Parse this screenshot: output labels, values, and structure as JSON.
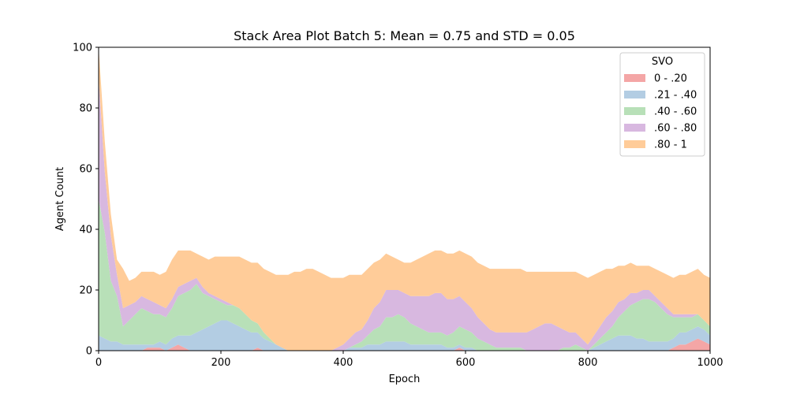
{
  "chart_data": {
    "type": "area",
    "stacked": true,
    "title": "Stack Area Plot Batch 5: Mean = 0.75 and STD = 0.05",
    "xlabel": "Epoch",
    "ylabel": "Agent Count",
    "xlim": [
      0,
      1000
    ],
    "ylim": [
      0,
      100
    ],
    "xticks": [
      0,
      200,
      400,
      600,
      800,
      1000
    ],
    "yticks": [
      0,
      20,
      40,
      60,
      80,
      100
    ],
    "grid": false,
    "legend": {
      "title": "SVO",
      "placement": "top-right"
    },
    "x": [
      0,
      10,
      20,
      30,
      40,
      50,
      60,
      70,
      80,
      90,
      100,
      110,
      120,
      130,
      140,
      150,
      160,
      170,
      180,
      190,
      200,
      210,
      220,
      230,
      240,
      250,
      260,
      270,
      280,
      290,
      300,
      310,
      320,
      330,
      340,
      350,
      360,
      370,
      380,
      390,
      400,
      410,
      420,
      430,
      440,
      450,
      460,
      470,
      480,
      490,
      500,
      510,
      520,
      530,
      540,
      550,
      560,
      570,
      580,
      590,
      600,
      610,
      620,
      630,
      640,
      650,
      660,
      670,
      680,
      690,
      700,
      710,
      720,
      730,
      740,
      750,
      760,
      770,
      780,
      790,
      800,
      810,
      820,
      830,
      840,
      850,
      860,
      870,
      880,
      890,
      900,
      910,
      920,
      930,
      940,
      950,
      960,
      970,
      980,
      990,
      1000
    ],
    "series": [
      {
        "name": "0 - .20",
        "color": "#f4a6a6",
        "values": [
          0,
          0,
          0,
          0,
          0,
          0,
          0,
          0,
          1,
          1,
          1,
          0,
          1,
          2,
          1,
          0,
          0,
          0,
          0,
          0,
          0,
          0,
          0,
          0,
          0,
          0,
          1,
          0,
          0,
          0,
          0,
          0,
          0,
          0,
          0,
          0,
          0,
          0,
          0,
          0,
          0,
          0,
          0,
          0,
          0,
          0,
          0,
          0,
          0,
          0,
          0,
          0,
          0,
          0,
          0,
          0,
          0,
          0,
          0,
          1,
          0,
          0,
          0,
          0,
          0,
          0,
          0,
          0,
          0,
          0,
          0,
          0,
          0,
          0,
          0,
          0,
          0,
          0,
          0,
          0,
          0,
          0,
          0,
          0,
          0,
          0,
          0,
          0,
          0,
          0,
          0,
          0,
          0,
          0,
          1,
          2,
          2,
          3,
          4,
          3,
          2
        ]
      },
      {
        "name": ".21 - .40",
        "color": "#b3cde3",
        "values": [
          5,
          4,
          3,
          3,
          2,
          2,
          2,
          2,
          1,
          1,
          2,
          2,
          3,
          3,
          4,
          5,
          6,
          7,
          8,
          9,
          10,
          10,
          9,
          8,
          7,
          6,
          5,
          4,
          3,
          2,
          1,
          0,
          0,
          0,
          0,
          0,
          0,
          0,
          0,
          0,
          0,
          1,
          1,
          1,
          2,
          2,
          2,
          3,
          3,
          3,
          3,
          2,
          2,
          2,
          2,
          2,
          2,
          1,
          1,
          1,
          1,
          1,
          0,
          0,
          0,
          0,
          0,
          0,
          0,
          0,
          0,
          0,
          0,
          0,
          0,
          0,
          0,
          0,
          0,
          0,
          0,
          1,
          2,
          3,
          4,
          5,
          5,
          5,
          4,
          4,
          3,
          3,
          3,
          3,
          3,
          4,
          4,
          4,
          4,
          4,
          3
        ]
      },
      {
        "name": ".40 - .60",
        "color": "#b8e0b8",
        "values": [
          45,
          35,
          20,
          15,
          6,
          8,
          10,
          12,
          11,
          10,
          9,
          9,
          10,
          13,
          14,
          15,
          16,
          12,
          10,
          8,
          6,
          5,
          6,
          6,
          5,
          4,
          3,
          2,
          1,
          0,
          0,
          0,
          0,
          0,
          0,
          0,
          0,
          0,
          0,
          0,
          0,
          0,
          1,
          2,
          3,
          5,
          6,
          8,
          8,
          9,
          8,
          7,
          6,
          5,
          4,
          4,
          4,
          4,
          5,
          6,
          6,
          5,
          4,
          3,
          2,
          1,
          1,
          1,
          1,
          1,
          0,
          0,
          0,
          0,
          0,
          0,
          1,
          1,
          2,
          1,
          0,
          1,
          2,
          3,
          4,
          6,
          8,
          10,
          12,
          13,
          14,
          13,
          11,
          9,
          7,
          5,
          5,
          4,
          4,
          3,
          3
        ]
      },
      {
        "name": ".60 - .80",
        "color": "#d8b8e0",
        "values": [
          40,
          20,
          15,
          7,
          6,
          5,
          4,
          4,
          4,
          4,
          3,
          3,
          3,
          3,
          3,
          3,
          2,
          2,
          1,
          1,
          1,
          1,
          0,
          0,
          0,
          0,
          0,
          0,
          0,
          0,
          0,
          0,
          0,
          0,
          0,
          0,
          0,
          0,
          0,
          1,
          2,
          3,
          4,
          4,
          5,
          7,
          8,
          9,
          9,
          8,
          8,
          9,
          10,
          11,
          12,
          13,
          13,
          12,
          11,
          10,
          9,
          8,
          7,
          6,
          5,
          5,
          5,
          5,
          5,
          5,
          6,
          7,
          8,
          9,
          9,
          8,
          6,
          5,
          4,
          3,
          2,
          3,
          4,
          5,
          5,
          5,
          4,
          4,
          3,
          3,
          3,
          2,
          2,
          2,
          1,
          1,
          1,
          1,
          0,
          0,
          0
        ]
      },
      {
        "name": ".80 - 1",
        "color": "#ffcc99",
        "values": [
          10,
          10,
          7,
          5,
          13,
          8,
          8,
          8,
          9,
          10,
          10,
          12,
          13,
          12,
          11,
          10,
          8,
          10,
          11,
          13,
          14,
          15,
          16,
          17,
          18,
          19,
          20,
          21,
          22,
          23,
          24,
          25,
          26,
          26,
          27,
          27,
          26,
          25,
          24,
          23,
          22,
          21,
          19,
          18,
          17,
          15,
          14,
          12,
          11,
          10,
          10,
          11,
          12,
          13,
          14,
          14,
          14,
          15,
          15,
          15,
          16,
          17,
          18,
          19,
          20,
          21,
          21,
          21,
          21,
          21,
          20,
          19,
          18,
          17,
          17,
          18,
          19,
          20,
          20,
          21,
          22,
          20,
          18,
          16,
          14,
          12,
          11,
          10,
          9,
          8,
          8,
          9,
          10,
          11,
          12,
          13,
          13,
          14,
          15,
          15,
          16
        ]
      }
    ]
  }
}
